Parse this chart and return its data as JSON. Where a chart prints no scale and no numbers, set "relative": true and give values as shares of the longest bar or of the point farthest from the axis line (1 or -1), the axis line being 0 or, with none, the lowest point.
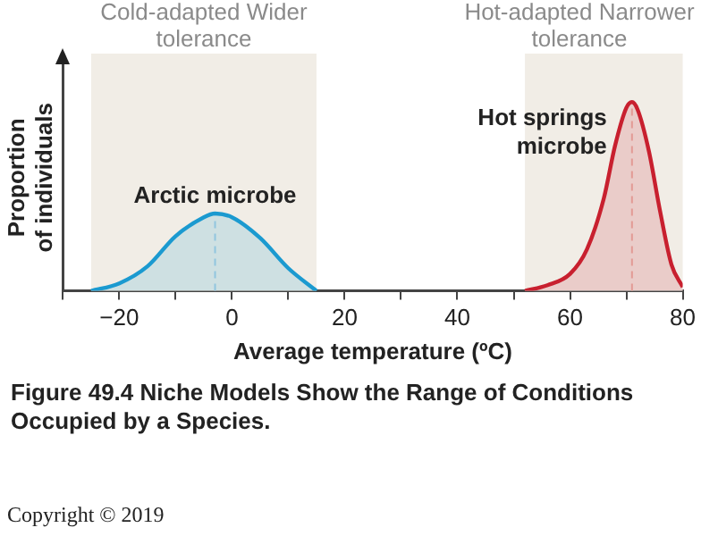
{
  "chart_data": {
    "type": "area",
    "title": "Figure 49.4  Niche Models Show the Range of Conditions Occupied by a Species.",
    "xlabel": "Average temperature (ºC)",
    "ylabel": "Proportion of individuals",
    "relative": true,
    "xlim": [
      -30,
      80
    ],
    "xticks": [
      {
        "value": -30,
        "label": null
      },
      -20,
      {
        "value": -10,
        "label": null
      },
      0,
      {
        "value": 10,
        "label": null
      },
      20,
      {
        "value": 30,
        "label": null
      },
      40,
      {
        "value": 50,
        "label": null
      },
      60,
      {
        "value": 70,
        "label": null
      },
      80
    ],
    "series": [
      {
        "name": "Arctic microbe",
        "color": "#1b9ad0",
        "x": [
          -25,
          -20,
          -15,
          -10,
          -5,
          -3,
          0,
          5,
          10,
          15
        ],
        "values": [
          0,
          0.04,
          0.13,
          0.29,
          0.39,
          0.41,
          0.39,
          0.28,
          0.12,
          0
        ]
      },
      {
        "name": "Hot springs microbe",
        "color": "#c8202f",
        "x": [
          52,
          56,
          60,
          63,
          66,
          68,
          70,
          71,
          72,
          74,
          76,
          78,
          80
        ],
        "values": [
          0,
          0.03,
          0.09,
          0.22,
          0.49,
          0.77,
          0.97,
          1,
          0.96,
          0.74,
          0.42,
          0.14,
          0.02
        ]
      }
    ],
    "bands": [
      {
        "axis": "x",
        "from": -25,
        "to": 15,
        "label": "Cold-adapted Wider tolerance",
        "color": "#f1ede6"
      },
      {
        "axis": "x",
        "from": 52,
        "to": 80,
        "label": "Hot-adapted Narrower tolerance",
        "color": "#f1ede6"
      }
    ],
    "ref_lines": [
      {
        "axis": "x",
        "value": -3,
        "color": "#a9cfe3",
        "line_style": "dashed"
      },
      {
        "axis": "x",
        "value": 71,
        "color": "#e8b3a8",
        "line_style": "dashed"
      }
    ],
    "grid": false,
    "legend": false,
    "annotations": [
      "Copyright © 2019"
    ]
  }
}
